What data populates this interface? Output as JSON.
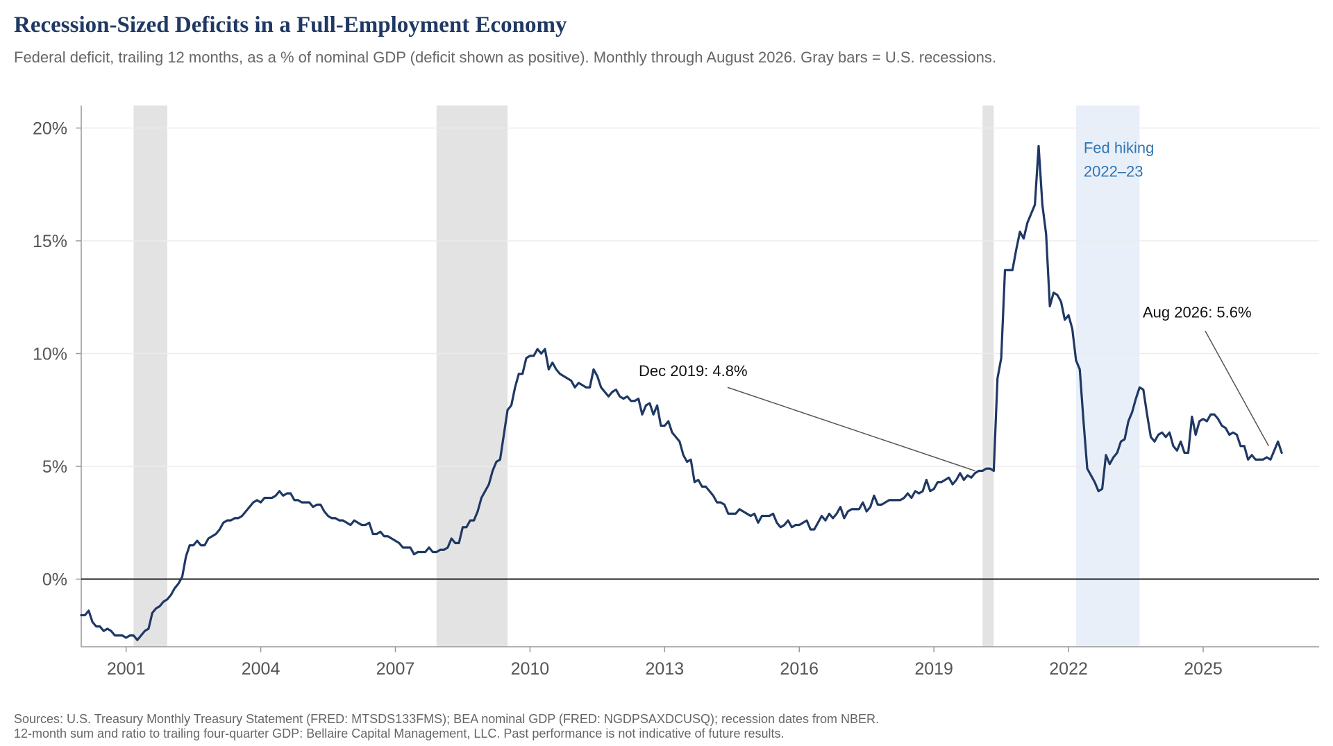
{
  "title": "Recession-Sized Deficits in a Full-Employment Economy",
  "subtitle": "Federal deficit, trailing 12 months, as a % of nominal GDP (deficit shown as positive). Monthly through August 2026. Gray bars = U.S. recessions.",
  "source": {
    "line1": "Sources: U.S. Treasury Monthly Treasury Statement (FRED: MTSDS133FMS); BEA nominal GDP (FRED: NGDPSAXDCUSQ); recession dates from NBER.",
    "line2": "12-month sum and ratio to trailing four-quarter GDP: Bellaire Capital Management, LLC. Past performance is not indicative of future results."
  },
  "colors": {
    "line": "#1f3864",
    "recession": "#e3e3e3",
    "fed_band": "#e8eff8",
    "fed_text": "#2f75b5",
    "zero_line": "#222222",
    "grid": "#ececec"
  },
  "chart_data": {
    "type": "line",
    "x_start": "2000-01",
    "x_end": "2026-08",
    "xlim": [
      "2000-01",
      "2027-08"
    ],
    "ylim": [
      -3,
      21
    ],
    "grid": "horizontal",
    "y_ticks": [
      {
        "value": 0,
        "label": "0%"
      },
      {
        "value": 5,
        "label": "5%"
      },
      {
        "value": 10,
        "label": "10%"
      },
      {
        "value": 15,
        "label": "15%"
      },
      {
        "value": 20,
        "label": "20%"
      }
    ],
    "x_ticks": [
      {
        "value": "2001-01",
        "label": "2001"
      },
      {
        "value": "2004-01",
        "label": "2004"
      },
      {
        "value": "2007-01",
        "label": "2007"
      },
      {
        "value": "2010-01",
        "label": "2010"
      },
      {
        "value": "2013-01",
        "label": "2013"
      },
      {
        "value": "2016-01",
        "label": "2016"
      },
      {
        "value": "2019-01",
        "label": "2019"
      },
      {
        "value": "2022-01",
        "label": "2022"
      },
      {
        "value": "2025-01",
        "label": "2025"
      }
    ],
    "recessions": [
      {
        "start": "2001-03",
        "end": "2001-11"
      },
      {
        "start": "2007-12",
        "end": "2009-06"
      },
      {
        "start": "2020-02",
        "end": "2020-04"
      }
    ],
    "highlight_band": {
      "start": "2022-03",
      "end": "2023-07",
      "label_line1": "Fed hiking",
      "label_line2": "2022–23"
    },
    "annotations": [
      {
        "text": "Dec 2019: 4.8%",
        "date": "2019-12",
        "value": 4.8
      },
      {
        "text": "Aug 2026: 5.6%",
        "date": "2026-08",
        "value": 5.6
      }
    ],
    "series": [
      {
        "values": [
          -1.6,
          -1.6,
          -1.4,
          -1.9,
          -2.1,
          -2.1,
          -2.3,
          -2.2,
          -2.3,
          -2.5,
          -2.5,
          -2.5,
          -2.6,
          -2.5,
          -2.5,
          -2.7,
          -2.5,
          -2.3,
          -2.2,
          -1.5,
          -1.3,
          -1.2,
          -1.0,
          -0.9,
          -0.7,
          -0.4,
          -0.2,
          0.1,
          1.0,
          1.5,
          1.5,
          1.7,
          1.5,
          1.5,
          1.8,
          1.9,
          2.0,
          2.2,
          2.5,
          2.6,
          2.6,
          2.7,
          2.7,
          2.8,
          3.0,
          3.2,
          3.4,
          3.5,
          3.4,
          3.6,
          3.6,
          3.6,
          3.7,
          3.9,
          3.7,
          3.8,
          3.8,
          3.5,
          3.5,
          3.4,
          3.4,
          3.4,
          3.2,
          3.3,
          3.3,
          3.0,
          2.8,
          2.7,
          2.7,
          2.6,
          2.6,
          2.5,
          2.4,
          2.6,
          2.5,
          2.4,
          2.4,
          2.5,
          2.0,
          2.0,
          2.1,
          1.9,
          1.9,
          1.8,
          1.7,
          1.6,
          1.4,
          1.4,
          1.4,
          1.1,
          1.2,
          1.2,
          1.2,
          1.4,
          1.2,
          1.2,
          1.3,
          1.3,
          1.4,
          1.8,
          1.6,
          1.6,
          2.3,
          2.3,
          2.6,
          2.6,
          3.0,
          3.6,
          3.9,
          4.2,
          4.8,
          5.2,
          5.3,
          6.4,
          7.5,
          7.7,
          8.5,
          9.1,
          9.1,
          9.8,
          9.9,
          9.9,
          10.2,
          10.0,
          10.2,
          9.3,
          9.6,
          9.3,
          9.1,
          9.0,
          8.9,
          8.8,
          8.5,
          8.7,
          8.6,
          8.5,
          8.5,
          9.3,
          9.0,
          8.5,
          8.3,
          8.1,
          8.3,
          8.4,
          8.1,
          8.0,
          8.1,
          7.9,
          7.9,
          8.0,
          7.3,
          7.7,
          7.8,
          7.3,
          7.7,
          6.8,
          6.8,
          7.0,
          6.5,
          6.3,
          6.1,
          5.5,
          5.2,
          5.3,
          4.3,
          4.4,
          4.1,
          4.1,
          3.9,
          3.7,
          3.4,
          3.4,
          3.3,
          2.9,
          2.9,
          2.9,
          3.1,
          3.0,
          2.9,
          2.8,
          2.9,
          2.5,
          2.8,
          2.8,
          2.8,
          2.9,
          2.5,
          2.3,
          2.4,
          2.6,
          2.3,
          2.4,
          2.4,
          2.5,
          2.6,
          2.2,
          2.2,
          2.5,
          2.8,
          2.6,
          2.9,
          2.7,
          2.9,
          3.2,
          2.7,
          3.0,
          3.1,
          3.1,
          3.1,
          3.4,
          3.0,
          3.2,
          3.7,
          3.3,
          3.3,
          3.4,
          3.5,
          3.5,
          3.5,
          3.5,
          3.6,
          3.8,
          3.6,
          3.9,
          3.8,
          3.9,
          4.4,
          3.9,
          4.0,
          4.3,
          4.3,
          4.4,
          4.5,
          4.2,
          4.4,
          4.7,
          4.4,
          4.6,
          4.5,
          4.7,
          4.8,
          4.8,
          4.9,
          4.9,
          4.8,
          8.9,
          9.8,
          13.7,
          13.7,
          13.7,
          14.6,
          15.4,
          15.1,
          15.8,
          16.2,
          16.6,
          19.2,
          16.6,
          15.3,
          12.1,
          12.7,
          12.6,
          12.3,
          11.5,
          11.7,
          11.1,
          9.7,
          9.3,
          7.0,
          4.9,
          4.6,
          4.3,
          3.9,
          4.0,
          5.5,
          5.1,
          5.4,
          5.6,
          6.1,
          6.2,
          7.0,
          7.4,
          8.0,
          8.5,
          8.4,
          7.3,
          6.3,
          6.1,
          6.4,
          6.5,
          6.3,
          6.5,
          5.9,
          5.7,
          6.1,
          5.6,
          5.6,
          7.2,
          6.4,
          7.0,
          7.1,
          7.0,
          7.3,
          7.3,
          7.1,
          6.8,
          6.7,
          6.4,
          6.5,
          6.4,
          5.9,
          5.9,
          5.3,
          5.5,
          5.3,
          5.3,
          5.3,
          5.4,
          5.3,
          5.7,
          6.1,
          5.6
        ]
      }
    ]
  }
}
